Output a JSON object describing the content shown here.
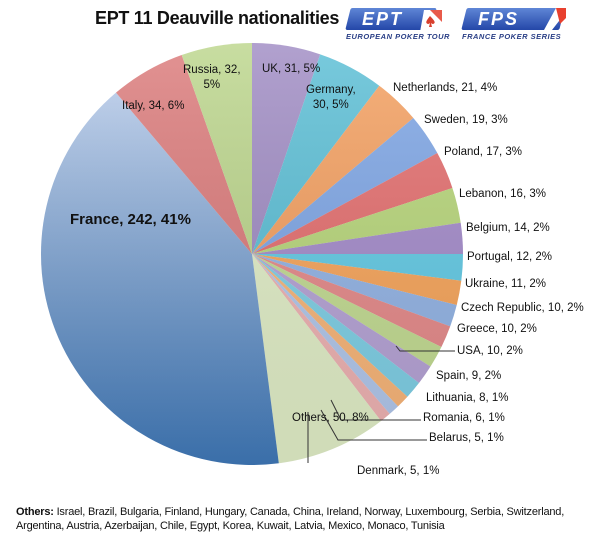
{
  "header": {
    "title": "EPT 11 Deauville nationalities",
    "logos": [
      {
        "main": "EPT",
        "sub": "EUROPEAN POKER TOUR"
      },
      {
        "main": "FPS",
        "sub": "FRANCE POKER SERIES"
      }
    ]
  },
  "footnote": {
    "label": "Others:",
    "text": " Israel, Brazil, Bulgaria, Finland, Hungary, Canada, China, Ireland, Norway, Luxembourg, Serbia, Switzerland, Argentina, Austria, Azerbaijan, Chile, Egypt, Korea, Kuwait, Latvia, Mexico, Monaco, Tunisia"
  },
  "chart_data": {
    "type": "pie",
    "title": "EPT 11 Deauville nationalities",
    "start_angle_deg": 0,
    "direction": "clockwise",
    "total": 592,
    "slices": [
      {
        "name": "UK",
        "value": 31,
        "pct": "5%",
        "label": "UK, 31, 5%",
        "color": "#a08cc4"
      },
      {
        "name": "Germany",
        "value": 30,
        "pct": "5%",
        "label": "Germany,\n30, 5%",
        "color": "#5bbfd6"
      },
      {
        "name": "Netherlands",
        "value": 21,
        "pct": "4%",
        "label": "Netherlands, 21, 4%",
        "color": "#f5a060"
      },
      {
        "name": "Sweden",
        "value": 19,
        "pct": "3%",
        "label": "Sweden, 19, 3%",
        "color": "#7ea6e6"
      },
      {
        "name": "Poland",
        "value": 17,
        "pct": "3%",
        "label": "Poland, 17, 3%",
        "color": "#e56e6e"
      },
      {
        "name": "Lebanon",
        "value": 16,
        "pct": "3%",
        "label": "Lebanon, 16, 3%",
        "color": "#b8d77a"
      },
      {
        "name": "Belgium",
        "value": 14,
        "pct": "2%",
        "label": "Belgium, 14, 2%",
        "color": "#a48bcb"
      },
      {
        "name": "Portugal",
        "value": 12,
        "pct": "2%",
        "label": "Portugal, 12, 2%",
        "color": "#62cbe6"
      },
      {
        "name": "Ukraine",
        "value": 11,
        "pct": "2%",
        "label": "Ukraine, 11, 2%",
        "color": "#f8a55a"
      },
      {
        "name": "Czech Republic",
        "value": 10,
        "pct": "2%",
        "label": "Czech Republic, 10, 2%",
        "color": "#93b4e6"
      },
      {
        "name": "Greece",
        "value": 10,
        "pct": "2%",
        "label": "Greece, 10, 2%",
        "color": "#e68a8a"
      },
      {
        "name": "USA",
        "value": 10,
        "pct": "2%",
        "label": "USA, 10, 2%",
        "color": "#c3dc92"
      },
      {
        "name": "Spain",
        "value": 9,
        "pct": "2%",
        "label": "Spain, 9, 2%",
        "color": "#b6a3d6"
      },
      {
        "name": "Lithuania",
        "value": 8,
        "pct": "1%",
        "label": "Lithuania, 8, 1%",
        "color": "#7fd0e6"
      },
      {
        "name": "Romania",
        "value": 6,
        "pct": "1%",
        "label": "Romania, 6, 1%",
        "color": "#f9b679"
      },
      {
        "name": "Belarus",
        "value": 5,
        "pct": "1%",
        "label": "Belarus, 5, 1%",
        "color": "#b2c8ec"
      },
      {
        "name": "Denmark",
        "value": 5,
        "pct": "1%",
        "label": "Denmark, 5, 1%",
        "color": "#efb3b3"
      },
      {
        "name": "Others",
        "value": 50,
        "pct": "8%",
        "label": "Others, 50, 8%",
        "color": "#e2efc8"
      },
      {
        "name": "France",
        "value": 242,
        "pct": "41%",
        "label": "France, 242, 41%",
        "color": "#6f9bd2"
      },
      {
        "name": "Italy",
        "value": 34,
        "pct": "6%",
        "label": "Italy, 34, 6%",
        "color": "#dc7b7b"
      },
      {
        "name": "Russia",
        "value": 32,
        "pct": "5%",
        "label": "Russia, 32,\n5%",
        "color": "#bcd68c"
      }
    ],
    "legend": "none (data labels on slices)"
  }
}
